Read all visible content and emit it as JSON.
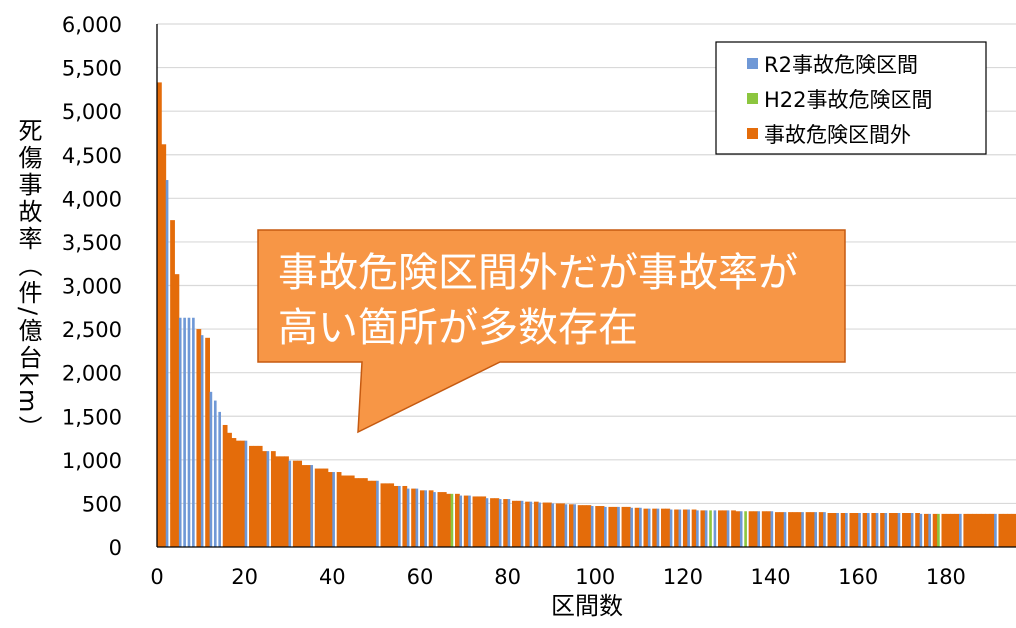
{
  "chart_data": {
    "type": "bar",
    "xlabel": "区間数",
    "ylabel": "死傷事故率（件/億台km）",
    "ylim": [
      0,
      6000
    ],
    "xlim": [
      0,
      196
    ],
    "y_ticks": [
      "0",
      "500",
      "1,000",
      "1,500",
      "2,000",
      "2,500",
      "3,000",
      "3,500",
      "4,000",
      "4,500",
      "5,000",
      "5,500",
      "6,000"
    ],
    "y_tick_values": [
      0,
      500,
      1000,
      1500,
      2000,
      2500,
      3000,
      3500,
      4000,
      4500,
      5000,
      5500,
      6000
    ],
    "x_ticks": [
      "0",
      "20",
      "40",
      "60",
      "80",
      "100",
      "120",
      "140",
      "160",
      "180"
    ],
    "x_tick_values": [
      0,
      20,
      40,
      60,
      80,
      100,
      120,
      140,
      160,
      180
    ],
    "grid": true,
    "legend_position": "top-right",
    "legend": [
      {
        "label": "R2事故危険区間",
        "color": "#6f98d6"
      },
      {
        "label": "H22事故危険区間",
        "color": "#8cc63f"
      },
      {
        "label": "事故危険区間外",
        "color": "#e46c0a"
      }
    ],
    "head_values": [
      5330,
      4620,
      4210,
      3750,
      3130,
      2630,
      2630,
      2630,
      2630,
      2500,
      2430,
      2400,
      1780,
      1680,
      1550,
      1400,
      1310,
      1250
    ],
    "highlight_r2_indices": [
      2,
      5,
      6,
      7,
      8,
      10,
      12,
      13,
      14,
      20,
      25,
      30,
      35,
      40,
      50,
      55,
      57,
      59,
      61,
      63,
      69,
      71,
      75,
      78,
      80,
      83,
      85,
      87,
      90,
      93,
      95,
      99,
      102,
      105,
      108,
      110,
      112,
      114,
      117,
      119,
      121,
      123,
      125,
      127,
      130,
      133,
      137,
      140,
      143,
      147,
      150,
      152,
      155,
      157,
      160,
      162,
      164,
      166,
      169,
      172,
      174,
      176,
      178,
      183,
      191
    ],
    "highlight_h22_indices": [
      67,
      126,
      134,
      178
    ],
    "callout": {
      "line1": "事故危険区間外だが事故率が",
      "line2": "高い箇所が多数存在",
      "fill": "#f79646"
    }
  }
}
